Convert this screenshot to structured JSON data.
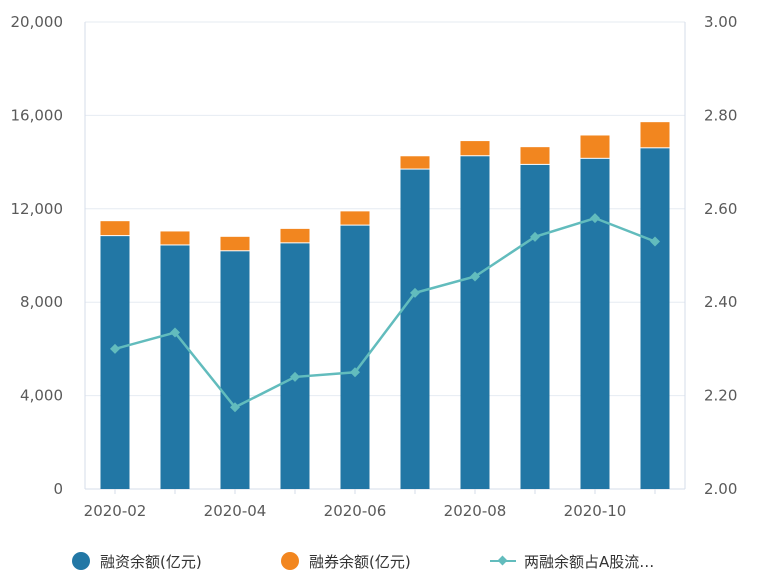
{
  "chart_data": {
    "type": "bar",
    "stacked": true,
    "categories": [
      "2020-02",
      "2020-03",
      "2020-04",
      "2020-05",
      "2020-06",
      "2020-07",
      "2020-08",
      "2020-09",
      "2020-10",
      "2020-11"
    ],
    "x_tick_labels": [
      "2020-02",
      "2020-04",
      "2020-06",
      "2020-08",
      "2020-10"
    ],
    "series": [
      {
        "name": "融资余额(亿元)",
        "type": "bar",
        "axis": "left",
        "color": "#2277a5",
        "values": [
          10830,
          10430,
          10180,
          10520,
          11280,
          13680,
          14250,
          13880,
          14140,
          14590
        ]
      },
      {
        "name": "融券余额(亿元)",
        "type": "bar",
        "axis": "left",
        "color": "#f2861f",
        "values": [
          640,
          600,
          620,
          620,
          610,
          570,
          650,
          760,
          1000,
          1120
        ]
      },
      {
        "name": "两融余额占A股流…",
        "type": "line",
        "axis": "right",
        "color": "#62bcbd",
        "marker": "diamond",
        "values": [
          2.3,
          2.335,
          2.175,
          2.24,
          2.25,
          2.42,
          2.455,
          2.54,
          2.58,
          2.53
        ]
      }
    ],
    "y_left": {
      "lim": [
        0,
        20000
      ],
      "ticks": [
        0,
        4000,
        8000,
        12000,
        16000,
        20000
      ],
      "tick_labels": [
        "0",
        "4,000",
        "8,000",
        "12,000",
        "16,000",
        "20,000"
      ]
    },
    "y_right": {
      "lim": [
        2.0,
        3.0
      ],
      "ticks": [
        2.0,
        2.2,
        2.4,
        2.6,
        2.8,
        3.0
      ],
      "tick_labels": [
        "2.00",
        "2.20",
        "2.40",
        "2.60",
        "2.80",
        "3.00"
      ]
    },
    "grid": true,
    "legend_position": "bottom",
    "axis_color": "#d5dcea",
    "grid_color": "#e6ebf2"
  }
}
